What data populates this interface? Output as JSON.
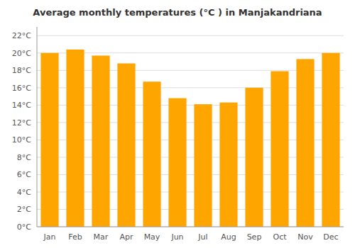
{
  "chart_data": {
    "type": "bar",
    "title": "Average monthly temperatures (°C ) in Manjakandriana",
    "categories": [
      "Jan",
      "Feb",
      "Mar",
      "Apr",
      "May",
      "Jun",
      "Jul",
      "Aug",
      "Sep",
      "Oct",
      "Nov",
      "Dec"
    ],
    "values": [
      20.0,
      20.4,
      19.7,
      18.8,
      16.7,
      14.8,
      14.1,
      14.3,
      16.0,
      17.9,
      19.3,
      20.0
    ],
    "color": "#FFA500",
    "ylim": [
      0,
      23
    ],
    "yticks": [
      {
        "value": 0,
        "label": "0°C"
      },
      {
        "value": 2,
        "label": "2°C"
      },
      {
        "value": 4,
        "label": "4°C"
      },
      {
        "value": 6,
        "label": "6°C"
      },
      {
        "value": 8,
        "label": "8°C"
      },
      {
        "value": 10,
        "label": "10°C"
      },
      {
        "value": 12,
        "label": "12°C"
      },
      {
        "value": 14,
        "label": "14°C"
      },
      {
        "value": 16,
        "label": "16°C"
      },
      {
        "value": 18,
        "label": "18°C"
      },
      {
        "value": 20,
        "label": "20°C"
      },
      {
        "value": 22,
        "label": "22°C"
      }
    ],
    "grid": true
  }
}
